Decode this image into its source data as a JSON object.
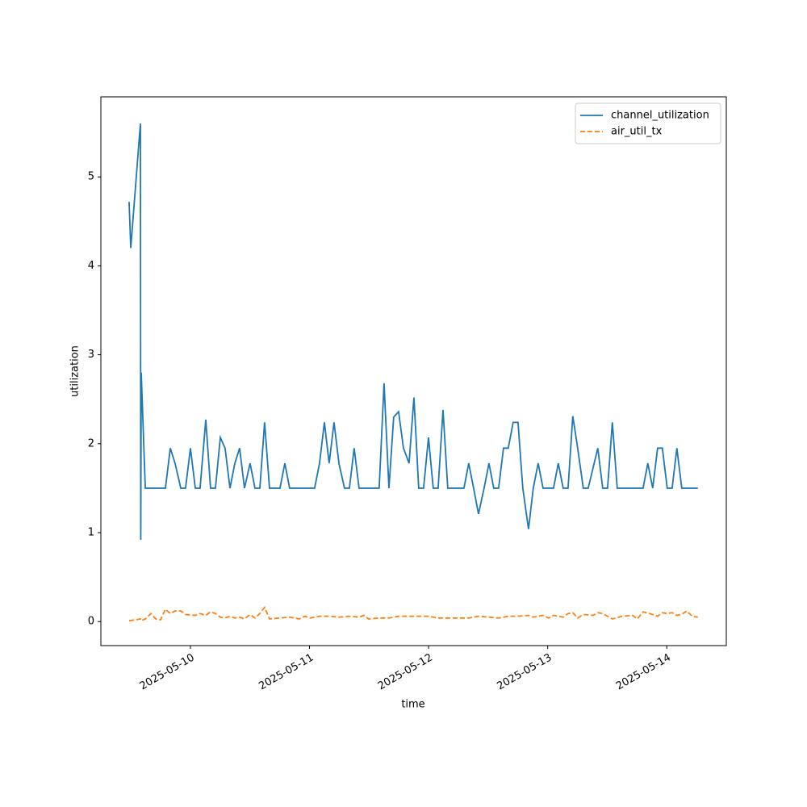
{
  "chart_data": {
    "type": "line",
    "xlabel": "time",
    "ylabel": "utilization",
    "xlim": [
      9.248,
      14.5
    ],
    "ylim": [
      -0.27,
      5.9
    ],
    "xticks": [
      {
        "value": 10,
        "label": "2025-05-10"
      },
      {
        "value": 11,
        "label": "2025-05-11"
      },
      {
        "value": 12,
        "label": "2025-05-12"
      },
      {
        "value": 13,
        "label": "2025-05-13"
      },
      {
        "value": 14,
        "label": "2025-05-14"
      }
    ],
    "yticks": [
      0,
      1,
      2,
      3,
      4,
      5
    ],
    "grid": false,
    "legend": "upper right",
    "series": [
      {
        "name": "channel_utilization",
        "color": "#1f77b4",
        "linestyle": "solid",
        "x": [
          9.485,
          9.499,
          9.58,
          9.583,
          9.587,
          9.621,
          9.79,
          9.831,
          9.871,
          9.919,
          9.959,
          10.0,
          10.041,
          10.081,
          10.129,
          10.169,
          10.21,
          10.251,
          10.291,
          10.332,
          10.373,
          10.413,
          10.454,
          10.501,
          10.542,
          10.583,
          10.623,
          10.664,
          10.752,
          10.793,
          10.833,
          11.043,
          11.084,
          11.125,
          11.165,
          11.206,
          11.247,
          11.294,
          11.335,
          11.375,
          11.416,
          11.585,
          11.626,
          11.667,
          11.707,
          11.748,
          11.789,
          11.836,
          11.877,
          11.917,
          11.958,
          11.999,
          12.039,
          12.08,
          12.121,
          12.161,
          12.297,
          12.337,
          12.378,
          12.419,
          12.466,
          12.507,
          12.547,
          12.588,
          12.629,
          12.669,
          12.71,
          12.751,
          12.791,
          12.839,
          12.879,
          12.92,
          12.961,
          13.049,
          13.089,
          13.13,
          13.171,
          13.211,
          13.252,
          13.299,
          13.34,
          13.421,
          13.462,
          13.503,
          13.543,
          13.584,
          13.801,
          13.841,
          13.882,
          13.923,
          13.963,
          14.004,
          14.045,
          14.085,
          14.126,
          14.261
        ],
        "values": [
          4.72,
          4.2,
          5.6,
          0.92,
          2.8,
          1.5,
          1.5,
          1.95,
          1.78,
          1.5,
          1.5,
          1.95,
          1.5,
          1.5,
          2.27,
          1.5,
          1.5,
          2.07,
          1.95,
          1.5,
          1.78,
          1.95,
          1.5,
          1.78,
          1.5,
          1.5,
          2.24,
          1.5,
          1.5,
          1.78,
          1.5,
          1.5,
          1.78,
          2.24,
          1.78,
          2.24,
          1.78,
          1.5,
          1.5,
          1.95,
          1.5,
          1.5,
          2.68,
          1.5,
          2.3,
          2.36,
          1.95,
          1.78,
          2.52,
          1.5,
          1.5,
          2.07,
          1.5,
          1.5,
          2.38,
          1.5,
          1.5,
          1.78,
          1.5,
          1.21,
          1.5,
          1.78,
          1.5,
          1.5,
          1.95,
          1.95,
          2.24,
          2.24,
          1.5,
          1.04,
          1.5,
          1.78,
          1.5,
          1.5,
          1.78,
          1.5,
          1.5,
          2.31,
          1.95,
          1.5,
          1.5,
          1.95,
          1.5,
          1.5,
          2.24,
          1.5,
          1.5,
          1.78,
          1.5,
          1.95,
          1.95,
          1.5,
          1.5,
          1.95,
          1.5,
          1.5
        ]
      },
      {
        "name": "air_util_tx",
        "color": "#ff7f0e",
        "linestyle": "dashed",
        "x": [
          9.485,
          9.539,
          9.58,
          9.587,
          9.621,
          9.668,
          9.709,
          9.749,
          9.79,
          9.831,
          9.871,
          9.919,
          9.959,
          10.041,
          10.081,
          10.129,
          10.169,
          10.21,
          10.251,
          10.291,
          10.332,
          10.373,
          10.413,
          10.454,
          10.501,
          10.542,
          10.583,
          10.623,
          10.664,
          10.752,
          10.833,
          10.915,
          10.962,
          11.003,
          11.084,
          11.165,
          11.247,
          11.335,
          11.416,
          11.457,
          11.497,
          11.585,
          11.667,
          11.748,
          11.836,
          11.917,
          11.999,
          12.08,
          12.161,
          12.249,
          12.337,
          12.419,
          12.507,
          12.588,
          12.669,
          12.751,
          12.839,
          12.879,
          12.961,
          13.008,
          13.049,
          13.13,
          13.171,
          13.211,
          13.252,
          13.299,
          13.381,
          13.421,
          13.462,
          13.543,
          13.625,
          13.713,
          13.753,
          13.801,
          13.882,
          13.923,
          13.963,
          14.004,
          14.045,
          14.085,
          14.126,
          14.167,
          14.214,
          14.261
        ],
        "values": [
          0.01,
          0.02,
          0.03,
          0.01,
          0.03,
          0.09,
          0.03,
          0.02,
          0.14,
          0.09,
          0.12,
          0.12,
          0.08,
          0.07,
          0.09,
          0.07,
          0.11,
          0.09,
          0.05,
          0.04,
          0.06,
          0.04,
          0.05,
          0.03,
          0.08,
          0.04,
          0.09,
          0.16,
          0.03,
          0.04,
          0.05,
          0.03,
          0.06,
          0.04,
          0.06,
          0.06,
          0.05,
          0.06,
          0.05,
          0.07,
          0.03,
          0.04,
          0.04,
          0.06,
          0.06,
          0.06,
          0.06,
          0.04,
          0.04,
          0.04,
          0.04,
          0.06,
          0.05,
          0.04,
          0.06,
          0.06,
          0.07,
          0.05,
          0.07,
          0.04,
          0.07,
          0.05,
          0.09,
          0.1,
          0.04,
          0.08,
          0.07,
          0.1,
          0.09,
          0.03,
          0.06,
          0.07,
          0.03,
          0.11,
          0.08,
          0.06,
          0.1,
          0.09,
          0.1,
          0.07,
          0.08,
          0.12,
          0.06,
          0.05
        ]
      }
    ]
  }
}
